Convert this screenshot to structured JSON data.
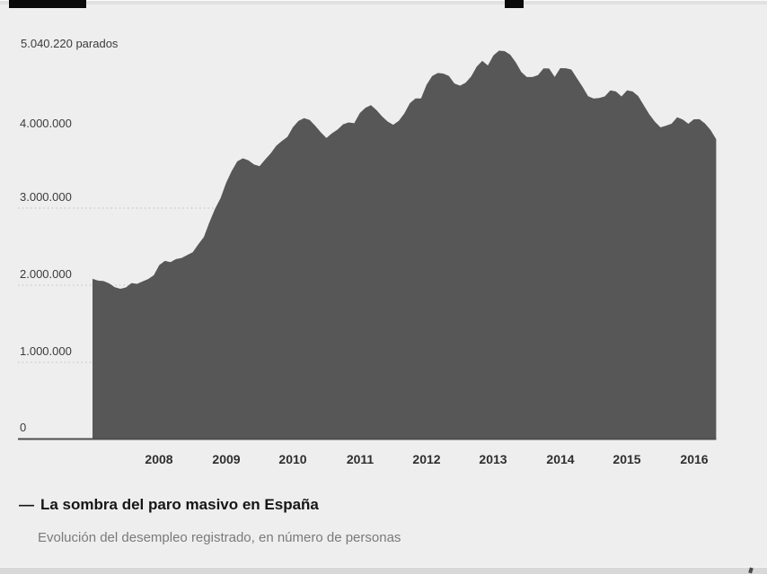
{
  "chart_data": {
    "type": "area",
    "title": "La sombra del paro masivo en España",
    "subtitle": "Evolución del desempleo registrado, en número de personas",
    "peak_annotation": "5.040.220 parados",
    "peak_value": 5040220,
    "x_unit": "month",
    "x_start": "2007-01",
    "x_end": "2016-05",
    "ylim": [
      0,
      5200000
    ],
    "grid": "dotted horizontal gridlines, solid zero baseline",
    "legend": {
      "position": "below",
      "dash": "—"
    },
    "area_color": "#575757",
    "background_color": "#eeeeee",
    "y_axis": {
      "ticks": [
        {
          "label": "0",
          "value": 0
        },
        {
          "label": "1.000.000",
          "value": 1000000
        },
        {
          "label": "2.000.000",
          "value": 2000000
        },
        {
          "label": "3.000.000",
          "value": 3000000
        },
        {
          "label": "4.000.000",
          "value": 4000000
        }
      ]
    },
    "x_axis": {
      "ticks": [
        "2008",
        "2009",
        "2010",
        "2011",
        "2012",
        "2013",
        "2014",
        "2015",
        "2016"
      ],
      "first_tick_year": 2008
    },
    "dotted_gridline_values": [
      1000000,
      2000000,
      3000000
    ],
    "series": [
      {
        "name": "Desempleo registrado",
        "start": "2007-01",
        "values": [
          2082500,
          2059300,
          2054000,
          2023200,
          1973000,
          1953600,
          1970800,
          2028300,
          2017400,
          2048700,
          2080600,
          2129500,
          2261900,
          2315300,
          2300500,
          2338500,
          2353600,
          2390400,
          2426900,
          2530000,
          2625400,
          2818000,
          2989300,
          3128900,
          3327800,
          3481900,
          3605400,
          3644900,
          3620100,
          3564900,
          3544100,
          3629100,
          3709400,
          3808500,
          3868900,
          3923600,
          4048500,
          4130600,
          4166600,
          4142400,
          4066200,
          3982400,
          3908600,
          3969700,
          4017800,
          4085500,
          4110300,
          4100100,
          4231000,
          4299300,
          4333700,
          4269400,
          4189700,
          4121800,
          4079700,
          4130900,
          4226700,
          4360900,
          4420500,
          4422400,
          4599800,
          4712100,
          4750900,
          4744200,
          4714100,
          4615300,
          4587500,
          4625600,
          4705300,
          4833500,
          4907800,
          4848700,
          4980800,
          5040220,
          5035200,
          4989200,
          4890900,
          4763700,
          4698800,
          4698600,
          4724400,
          4811400,
          4808900,
          4701300,
          4814400,
          4812500,
          4795900,
          4684300,
          4572400,
          4449700,
          4419900,
          4427900,
          4447700,
          4526800,
          4512100,
          4447700,
          4525700,
          4512200,
          4451900,
          4333000,
          4215000,
          4120300,
          4046300,
          4068200,
          4094100,
          4176400,
          4149300,
          4093500,
          4150800,
          4152100,
          4094800,
          4011200,
          3891400
        ]
      }
    ]
  }
}
